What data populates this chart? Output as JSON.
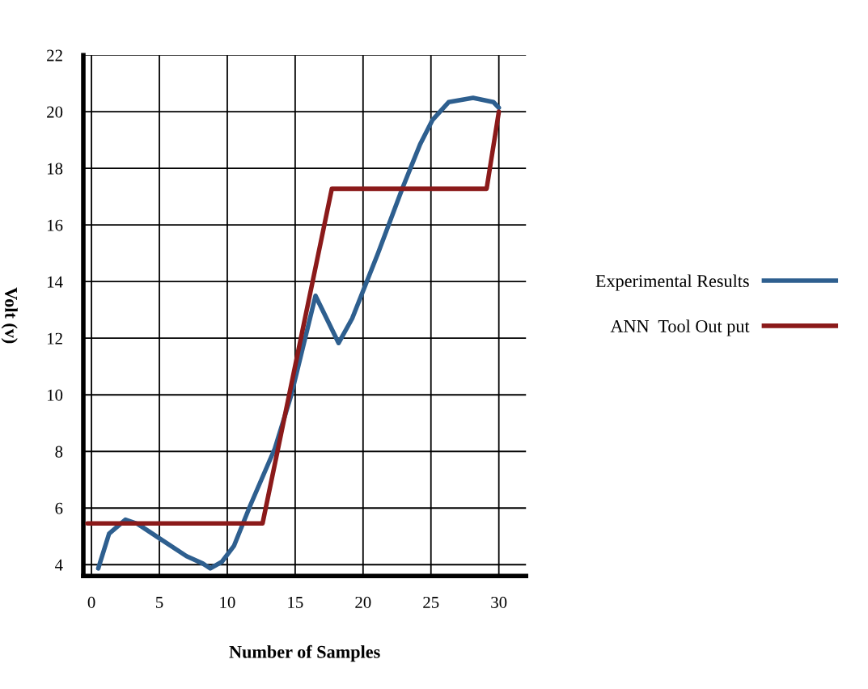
{
  "chart_data": {
    "type": "line",
    "xlabel": "Number of Samples",
    "ylabel": "Volt (v)",
    "xlim": [
      -0.6,
      32
    ],
    "ylim": [
      3.6,
      22
    ],
    "xticks": [
      0,
      5,
      10,
      15,
      20,
      25,
      30
    ],
    "yticks": [
      4,
      6,
      8,
      10,
      12,
      14,
      16,
      18,
      20,
      22
    ],
    "grid": true,
    "legend": "right",
    "marker": "none",
    "line_style": "solid",
    "series": [
      {
        "name": "Experimental Results",
        "color": "#2e5f8f",
        "x": [
          0.5,
          1.3,
          2.5,
          3.4,
          5.2,
          7.0,
          8.2,
          8.75,
          9.6,
          10.5,
          11.7,
          13.5,
          14.7,
          16.5,
          18.2,
          19.2,
          21.1,
          22.9,
          24.2,
          25.1,
          26.3,
          28.1,
          29.6,
          30
        ],
        "values": [
          3.87,
          5.1,
          5.59,
          5.44,
          4.87,
          4.3,
          4.04,
          3.87,
          4.1,
          4.67,
          6.1,
          8.1,
          9.97,
          13.5,
          11.83,
          12.7,
          15.0,
          17.3,
          18.85,
          19.7,
          20.34,
          20.49,
          20.34,
          20.14
        ]
      },
      {
        "name": "ANN  Tool Out put",
        "color": "#8b1a1a",
        "x": [
          -0.3,
          12.6,
          17.7,
          29.1,
          30
        ],
        "values": [
          5.46,
          5.46,
          17.28,
          17.28,
          20.0
        ]
      }
    ]
  }
}
